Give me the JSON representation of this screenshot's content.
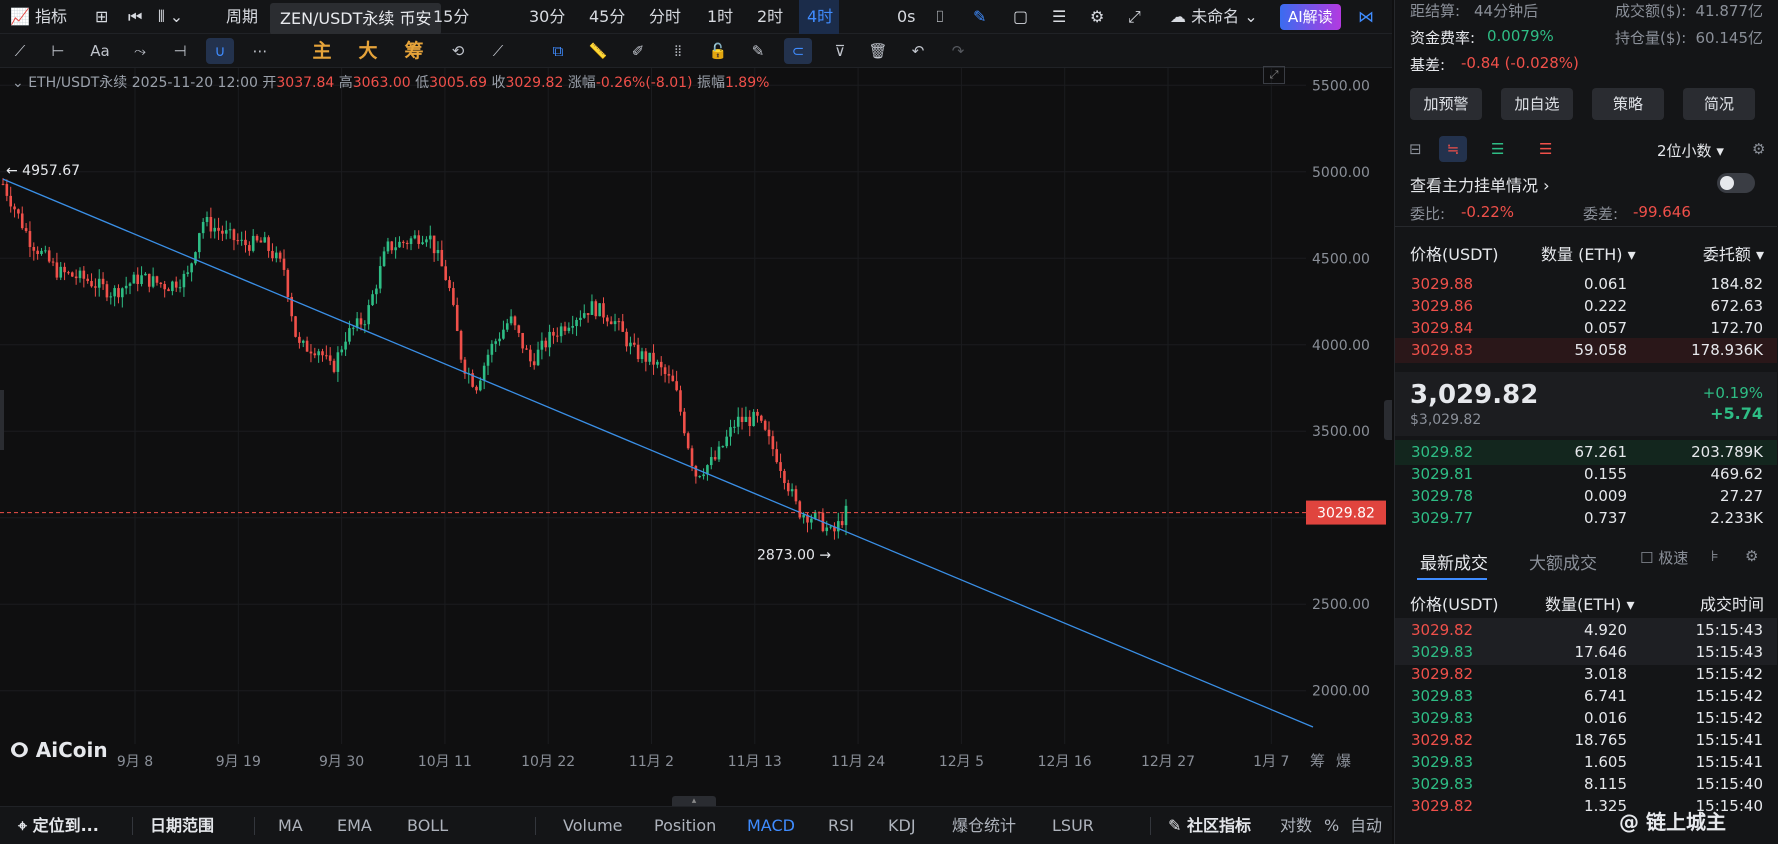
{
  "topbar": {
    "indicator_label": "指标",
    "period_label": "周期",
    "tooltip": "ZEN/USDT永续 币安",
    "intervals": [
      "15分",
      "30分",
      "45分",
      "分时",
      "1时",
      "2时",
      "4时"
    ],
    "active_interval": "4时",
    "countdown": "0s",
    "layout_name": "未命名",
    "ai_button": "AI解读"
  },
  "toolbar": {
    "text_tool": "Aa",
    "main_label": "主",
    "big_label": "大",
    "chip_label": "筹"
  },
  "info": {
    "symbol": "ETH/USDT永续",
    "datetime": "2025-11-20 12:00",
    "open_label": "开",
    "open": "3037.84",
    "high_label": "高",
    "high": "3063.00",
    "low_label": "低",
    "low": "3005.69",
    "close_label": "收",
    "close": "3029.82",
    "change_label": "涨幅",
    "change": "-0.26%(-8.01)",
    "amp_label": "振幅",
    "amplitude": "1.89%"
  },
  "chart_data": {
    "type": "candlestick",
    "symbol": "ETH/USDT永续",
    "interval": "4时",
    "x_tick_labels": [
      "9月 8",
      "9月 19",
      "9月 30",
      "10月 11",
      "10月 22",
      "11月 2",
      "11月 13",
      "11月 24",
      "12月 5",
      "12月 16",
      "12月 27",
      "1月 7"
    ],
    "y_tick_labels": [
      "5500.00",
      "5000.00",
      "4500.00",
      "4000.00",
      "3500.00",
      "3000.00",
      "2500.00",
      "2000.00"
    ],
    "ylim": [
      1530,
      5600
    ],
    "last_price": 3029.82,
    "last_price_label": "3029.82",
    "annotations": {
      "high_marker": "4957.67",
      "low_marker": "2873.00"
    },
    "trendline": {
      "from_price": 4957.67,
      "to_price": 1790
    },
    "price_path": [
      [
        0,
        4930
      ],
      [
        0.02,
        4600
      ],
      [
        0.04,
        4420
      ],
      [
        0.06,
        4380
      ],
      [
        0.08,
        4300
      ],
      [
        0.1,
        4390
      ],
      [
        0.12,
        4340
      ],
      [
        0.135,
        4400
      ],
      [
        0.145,
        4720
      ],
      [
        0.16,
        4650
      ],
      [
        0.175,
        4580
      ],
      [
        0.19,
        4590
      ],
      [
        0.205,
        4440
      ],
      [
        0.215,
        3990
      ],
      [
        0.23,
        3980
      ],
      [
        0.24,
        3850
      ],
      [
        0.25,
        4050
      ],
      [
        0.265,
        4160
      ],
      [
        0.28,
        4560
      ],
      [
        0.295,
        4600
      ],
      [
        0.31,
        4650
      ],
      [
        0.325,
        4350
      ],
      [
        0.335,
        3900
      ],
      [
        0.345,
        3760
      ],
      [
        0.355,
        3970
      ],
      [
        0.37,
        4150
      ],
      [
        0.385,
        3900
      ],
      [
        0.4,
        4050
      ],
      [
        0.415,
        4150
      ],
      [
        0.43,
        4220
      ],
      [
        0.445,
        4150
      ],
      [
        0.46,
        3960
      ],
      [
        0.475,
        3900
      ],
      [
        0.49,
        3760
      ],
      [
        0.505,
        3250
      ],
      [
        0.52,
        3340
      ],
      [
        0.535,
        3560
      ],
      [
        0.55,
        3570
      ],
      [
        0.565,
        3350
      ],
      [
        0.58,
        3040
      ],
      [
        0.595,
        2990
      ],
      [
        0.605,
        2900
      ],
      [
        0.615,
        3030
      ]
    ],
    "axis_labels_right": [
      "筹",
      "爆"
    ]
  },
  "bottombar": {
    "locate": "定位到...",
    "date_range": "日期范围",
    "indicators": [
      "MA",
      "EMA",
      "BOLL",
      "Volume",
      "Position",
      "MACD",
      "RSI",
      "KDJ",
      "爆仓统计",
      "LSUR"
    ],
    "active": "MACD",
    "community": "社区指标",
    "log": "对数",
    "percent": "%",
    "auto": "自动"
  },
  "watermark": "AiCoin",
  "right": {
    "settle_label": "距结算:",
    "settle_value": "44分钟后",
    "turnover_label": "成交额($):",
    "turnover_value": "41.877亿",
    "funding_label": "资金费率:",
    "funding_value": "0.0079%",
    "oi_label": "持仓量($):",
    "oi_value": "60.145亿",
    "basis_label": "基差:",
    "basis_value": "-0.84 (-0.028%)",
    "buttons": [
      "加预警",
      "加自选",
      "策略",
      "简况"
    ],
    "decimals": "2位小数",
    "main_orders": "查看主力挂单情况",
    "ratio_label": "委比:",
    "ratio_value": "-0.22%",
    "diff_label": "委差:",
    "diff_value": "-99.646",
    "book_headers": [
      "价格(USDT)",
      "数量 (ETH)",
      "委托额"
    ],
    "asks": [
      {
        "price": "3029.88",
        "qty": "0.061",
        "amount": "184.82"
      },
      {
        "price": "3029.86",
        "qty": "0.222",
        "amount": "672.63"
      },
      {
        "price": "3029.84",
        "qty": "0.057",
        "amount": "172.70"
      },
      {
        "price": "3029.83",
        "qty": "59.058",
        "amount": "178.936K"
      }
    ],
    "last_price": "3,029.82",
    "last_price_usd": "$3,029.82",
    "change_pct": "+0.19%",
    "change_abs": "+5.74",
    "bids": [
      {
        "price": "3029.82",
        "qty": "67.261",
        "amount": "203.789K"
      },
      {
        "price": "3029.81",
        "qty": "0.155",
        "amount": "469.62"
      },
      {
        "price": "3029.78",
        "qty": "0.009",
        "amount": "27.27"
      },
      {
        "price": "3029.77",
        "qty": "0.737",
        "amount": "2.233K"
      }
    ],
    "trade_tabs": [
      "最新成交",
      "大额成交"
    ],
    "fast_label": "极速",
    "trade_headers": [
      "价格(USDT)",
      "数量(ETH)",
      "成交时间"
    ],
    "trades": [
      {
        "price": "3029.82",
        "qty": "4.920",
        "time": "15:15:43",
        "side": "sell"
      },
      {
        "price": "3029.83",
        "qty": "17.646",
        "time": "15:15:43",
        "side": "buy"
      },
      {
        "price": "3029.82",
        "qty": "3.018",
        "time": "15:15:42",
        "side": "sell"
      },
      {
        "price": "3029.83",
        "qty": "6.741",
        "time": "15:15:42",
        "side": "buy"
      },
      {
        "price": "3029.83",
        "qty": "0.016",
        "time": "15:15:42",
        "side": "buy"
      },
      {
        "price": "3029.82",
        "qty": "18.765",
        "time": "15:15:41",
        "side": "sell"
      },
      {
        "price": "3029.83",
        "qty": "1.605",
        "time": "15:15:41",
        "side": "buy"
      },
      {
        "price": "3029.83",
        "qty": "8.115",
        "time": "15:15:40",
        "side": "buy"
      },
      {
        "price": "3029.82",
        "qty": "1.325",
        "time": "15:15:40",
        "side": "sell"
      }
    ],
    "watermark": "@ 链上城主"
  },
  "colors": {
    "up": "#2ebd85",
    "down": "#f0504a",
    "accent": "#3f8cff",
    "trendline": "#3a8fe6"
  }
}
